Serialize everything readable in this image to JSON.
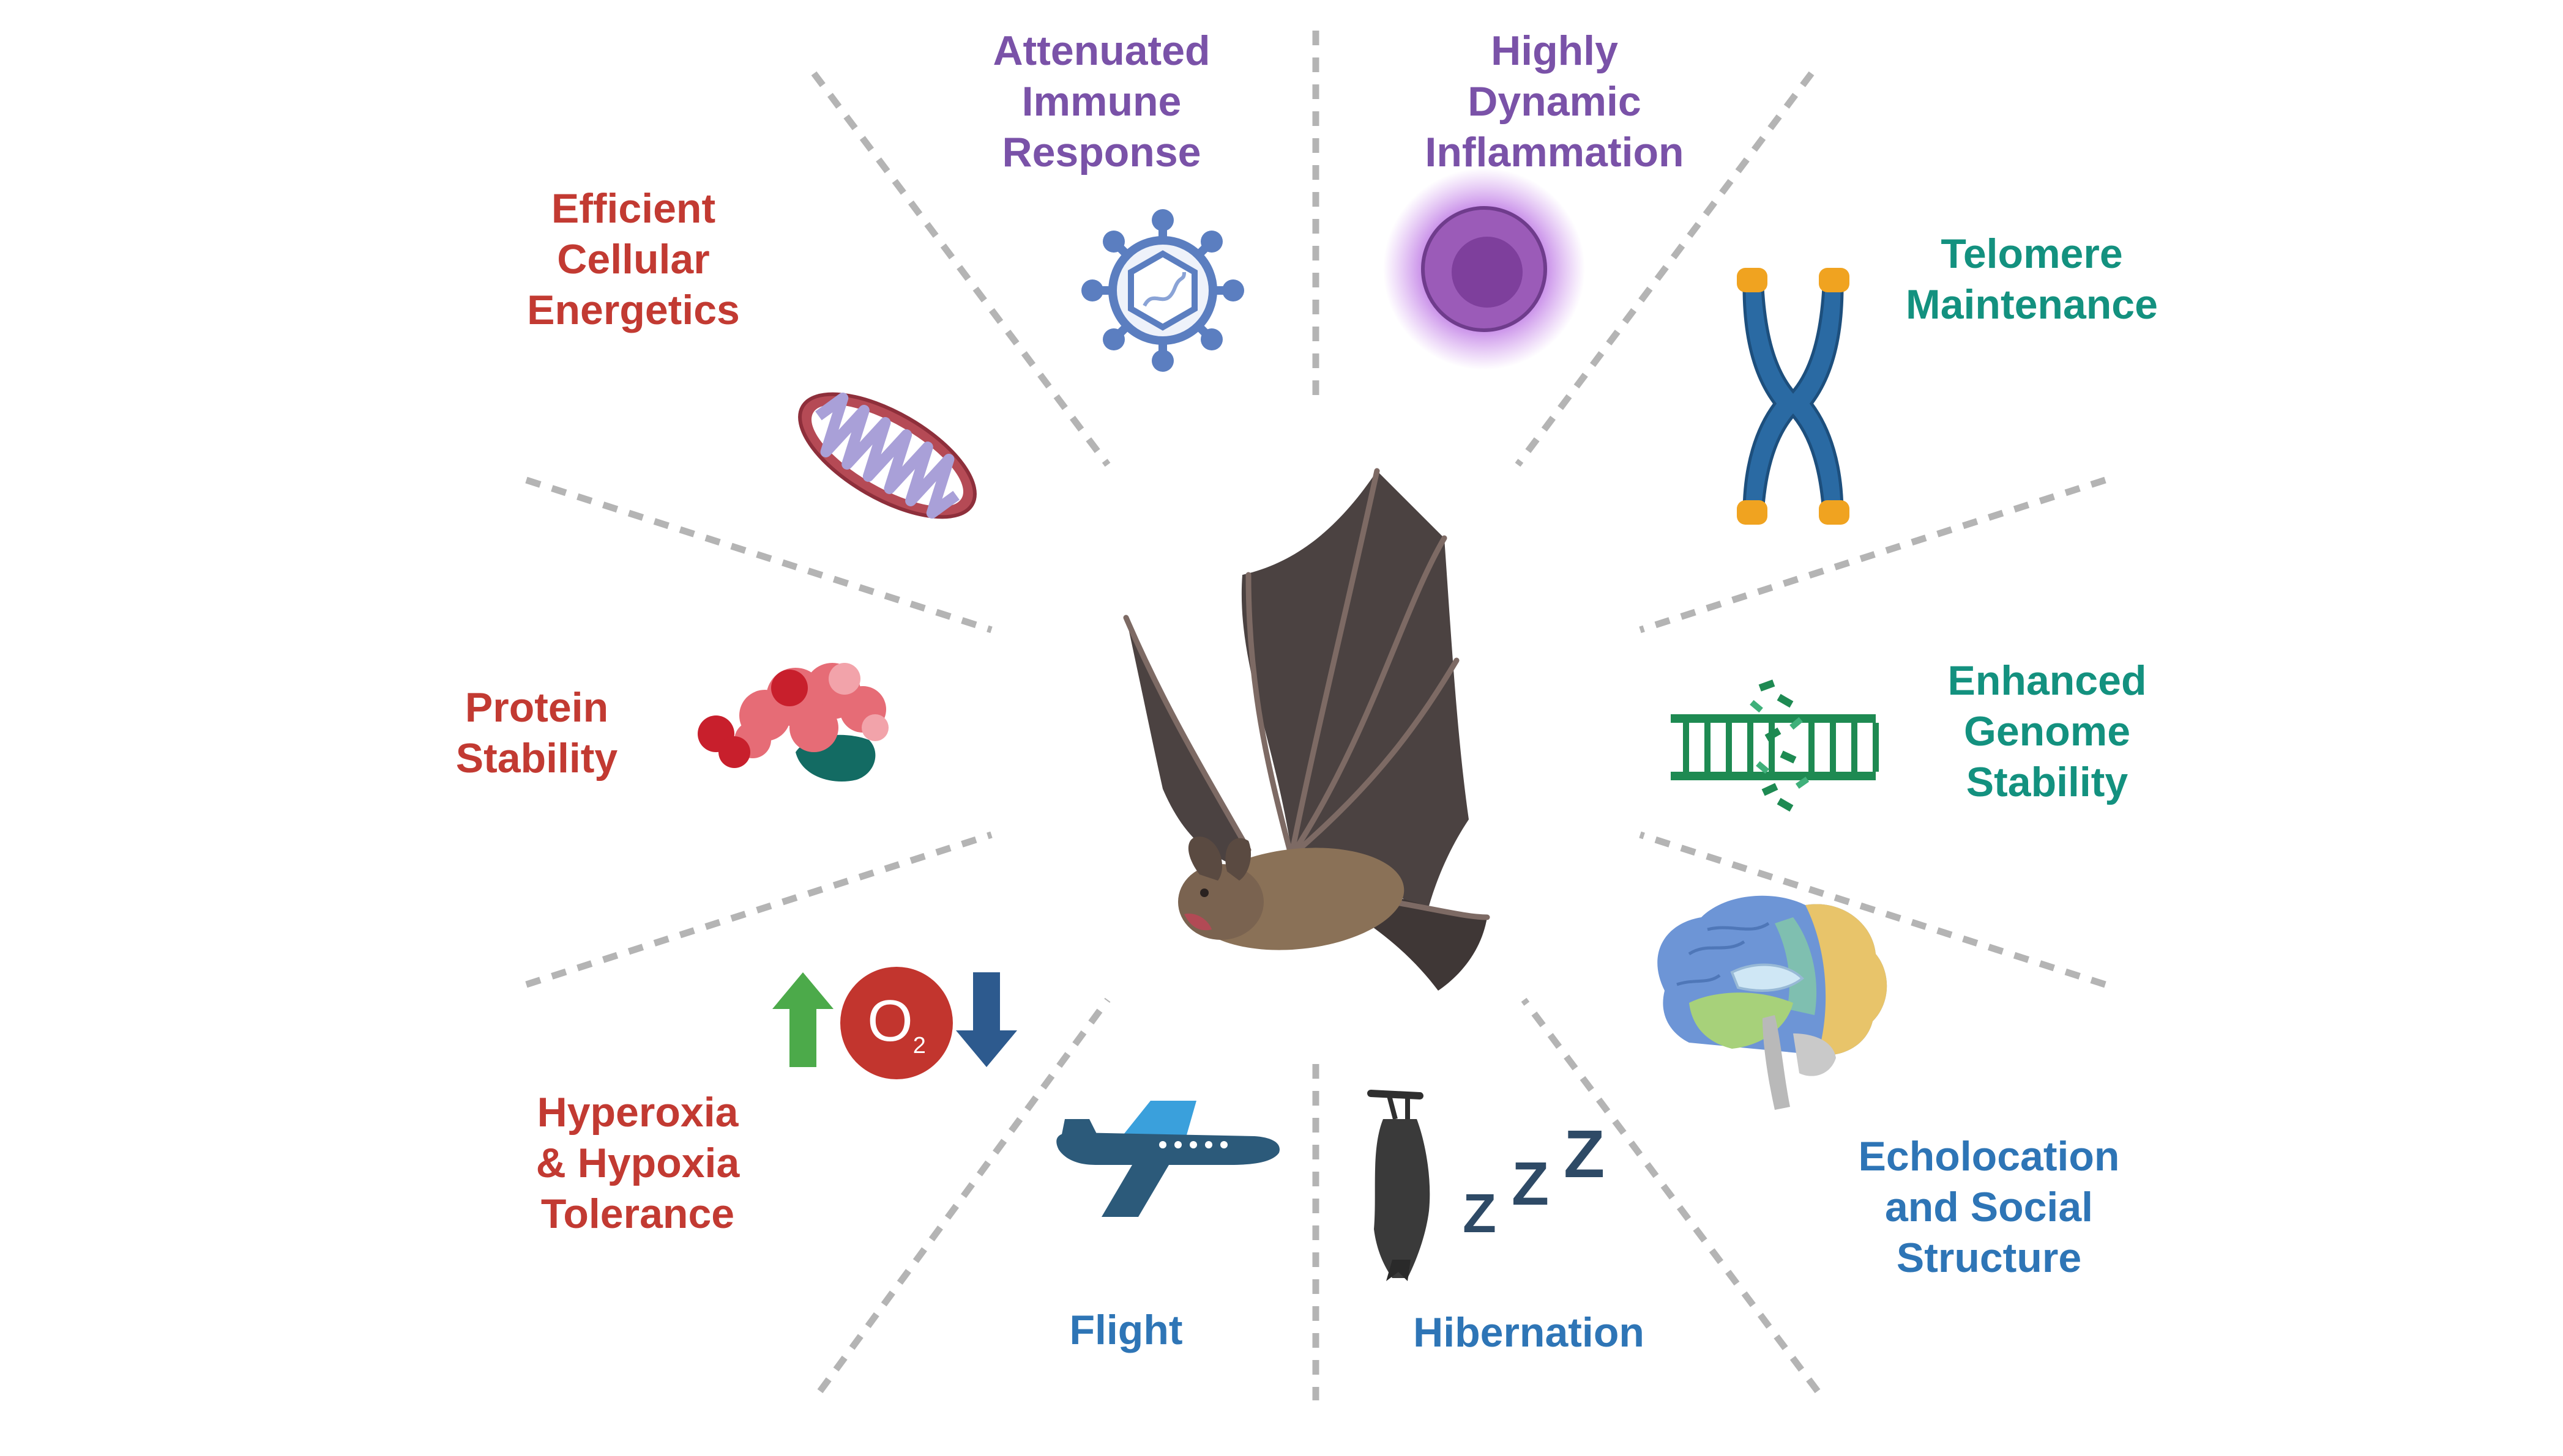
{
  "colors": {
    "purple": "#7a52a8",
    "red": "#c23a32",
    "teal": "#13917f",
    "blue": "#2e75b6",
    "divider": "#b4b4b4",
    "bat_wing": "#4b4241",
    "bat_body": "#8a7157"
  },
  "center_icon": "bat-icon",
  "traits": [
    {
      "id": "immune",
      "lines": [
        "Attenuated",
        "Immune",
        "Response"
      ],
      "color": "#7a52a8",
      "icon": "virus-icon"
    },
    {
      "id": "inflammation",
      "lines": [
        "Highly",
        "Dynamic",
        "Inflammation"
      ],
      "color": "#7a52a8",
      "icon": "glowing-cell-icon"
    },
    {
      "id": "telomere",
      "lines": [
        "Telomere",
        "Maintenance"
      ],
      "color": "#13917f",
      "icon": "chromosome-icon"
    },
    {
      "id": "genome",
      "lines": [
        "Enhanced",
        "Genome",
        "Stability"
      ],
      "color": "#13917f",
      "icon": "dna-repair-icon"
    },
    {
      "id": "echolocation",
      "lines": [
        "Echolocation",
        "and Social",
        "Structure"
      ],
      "color": "#2e75b6",
      "icon": "brain-icon"
    },
    {
      "id": "hibernation",
      "lines": [
        "Hibernation"
      ],
      "color": "#2e75b6",
      "icon": "sleeping-bat-icon"
    },
    {
      "id": "flight",
      "lines": [
        "Flight"
      ],
      "color": "#2e75b6",
      "icon": "airplane-icon"
    },
    {
      "id": "oxygen",
      "lines": [
        "Hyperoxia",
        "& Hypoxia",
        "Tolerance"
      ],
      "color": "#c23a32",
      "icon": "oxygen-arrows-icon",
      "o2_text": "O",
      "o2_sub": "2"
    },
    {
      "id": "protein",
      "lines": [
        "Protein",
        "Stability"
      ],
      "color": "#c23a32",
      "icon": "protein-icon"
    },
    {
      "id": "energetics",
      "lines": [
        "Efficient",
        "Cellular",
        "Energetics"
      ],
      "color": "#c23a32",
      "icon": "mitochondrion-icon"
    }
  ]
}
